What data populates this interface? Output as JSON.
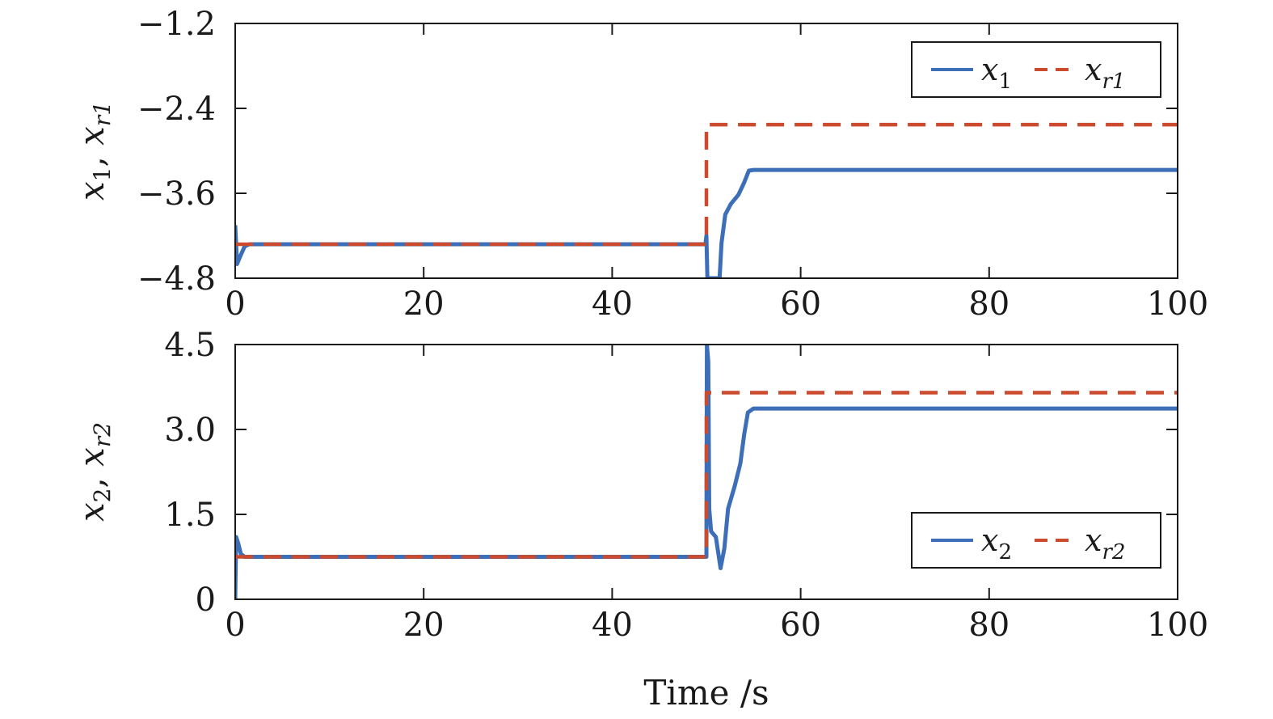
{
  "chart_data": [
    {
      "type": "line",
      "panel": "top",
      "xlabel": "",
      "ylabel": {
        "main": "x",
        "sub1": "1",
        "sep": ", ",
        "main2": "x",
        "sub2": "r1"
      },
      "xlim": [
        0,
        100
      ],
      "ylim": [
        -4.8,
        -1.2
      ],
      "xticks": [
        0,
        20,
        40,
        60,
        80,
        100
      ],
      "yticks": [
        -4.8,
        -3.6,
        -2.4,
        -1.2
      ],
      "xtick_labels": [
        "0",
        "20",
        "40",
        "60",
        "80",
        "100"
      ],
      "ytick_labels": [
        "−4.8",
        "−3.6",
        "−2.4",
        "−1.2"
      ],
      "grid": false,
      "legend_position": "top-right",
      "series": [
        {
          "name": "x1",
          "legend": {
            "main": "x",
            "sub": "1"
          },
          "style": "solid",
          "color": "#3d6fb8",
          "points": [
            [
              0,
              -4.05
            ],
            [
              0.2,
              -4.6
            ],
            [
              0.5,
              -4.5
            ],
            [
              1.0,
              -4.35
            ],
            [
              1.5,
              -4.32
            ],
            [
              49.9,
              -4.32
            ],
            [
              50.0,
              -4.2
            ],
            [
              50.1,
              -4.8
            ],
            [
              50.3,
              -4.8
            ],
            [
              51.4,
              -4.8
            ],
            [
              51.6,
              -4.3
            ],
            [
              52.0,
              -3.9
            ],
            [
              52.6,
              -3.75
            ],
            [
              53.4,
              -3.62
            ],
            [
              54.0,
              -3.45
            ],
            [
              54.5,
              -3.28
            ],
            [
              55.0,
              -3.27
            ],
            [
              100,
              -3.27
            ]
          ]
        },
        {
          "name": "xr1",
          "legend": {
            "main": "x",
            "sub": "r1"
          },
          "style": "dashed",
          "color": "#cc4a2e",
          "points": [
            [
              0,
              -4.32
            ],
            [
              50.0,
              -4.32
            ],
            [
              50.0,
              -2.63
            ],
            [
              100,
              -2.63
            ]
          ]
        }
      ]
    },
    {
      "type": "line",
      "panel": "bottom",
      "xlabel": "Time /s",
      "ylabel": {
        "main": "x",
        "sub1": "2",
        "sep": ", ",
        "main2": "x",
        "sub2": "r2"
      },
      "xlim": [
        0,
        100
      ],
      "ylim": [
        0,
        4.5
      ],
      "xticks": [
        0,
        20,
        40,
        60,
        80,
        100
      ],
      "yticks": [
        0,
        1.5,
        3.0,
        4.5
      ],
      "xtick_labels": [
        "0",
        "20",
        "40",
        "60",
        "80",
        "100"
      ],
      "ytick_labels": [
        "0",
        "1.5",
        "3.0",
        "4.5"
      ],
      "grid": false,
      "legend_position": "bottom-right",
      "series": [
        {
          "name": "x2",
          "legend": {
            "main": "x",
            "sub": "2"
          },
          "style": "solid",
          "color": "#3d6fb8",
          "points": [
            [
              0,
              0
            ],
            [
              0.1,
              1.1
            ],
            [
              0.3,
              1.0
            ],
            [
              0.6,
              0.8
            ],
            [
              1.0,
              0.75
            ],
            [
              50.0,
              0.75
            ],
            [
              50.05,
              4.5
            ],
            [
              50.2,
              4.2
            ],
            [
              50.3,
              1.6
            ],
            [
              50.5,
              1.2
            ],
            [
              51.0,
              1.1
            ],
            [
              51.5,
              0.55
            ],
            [
              51.9,
              0.9
            ],
            [
              52.3,
              1.6
            ],
            [
              53.0,
              2.0
            ],
            [
              53.6,
              2.4
            ],
            [
              54.0,
              2.9
            ],
            [
              54.4,
              3.3
            ],
            [
              55.0,
              3.37
            ],
            [
              100,
              3.37
            ]
          ]
        },
        {
          "name": "xr2",
          "legend": {
            "main": "x",
            "sub": "r2"
          },
          "style": "dashed",
          "color": "#cc4a2e",
          "points": [
            [
              0,
              0.75
            ],
            [
              50.0,
              0.75
            ],
            [
              50.0,
              3.65
            ],
            [
              100,
              3.65
            ]
          ]
        }
      ]
    }
  ]
}
